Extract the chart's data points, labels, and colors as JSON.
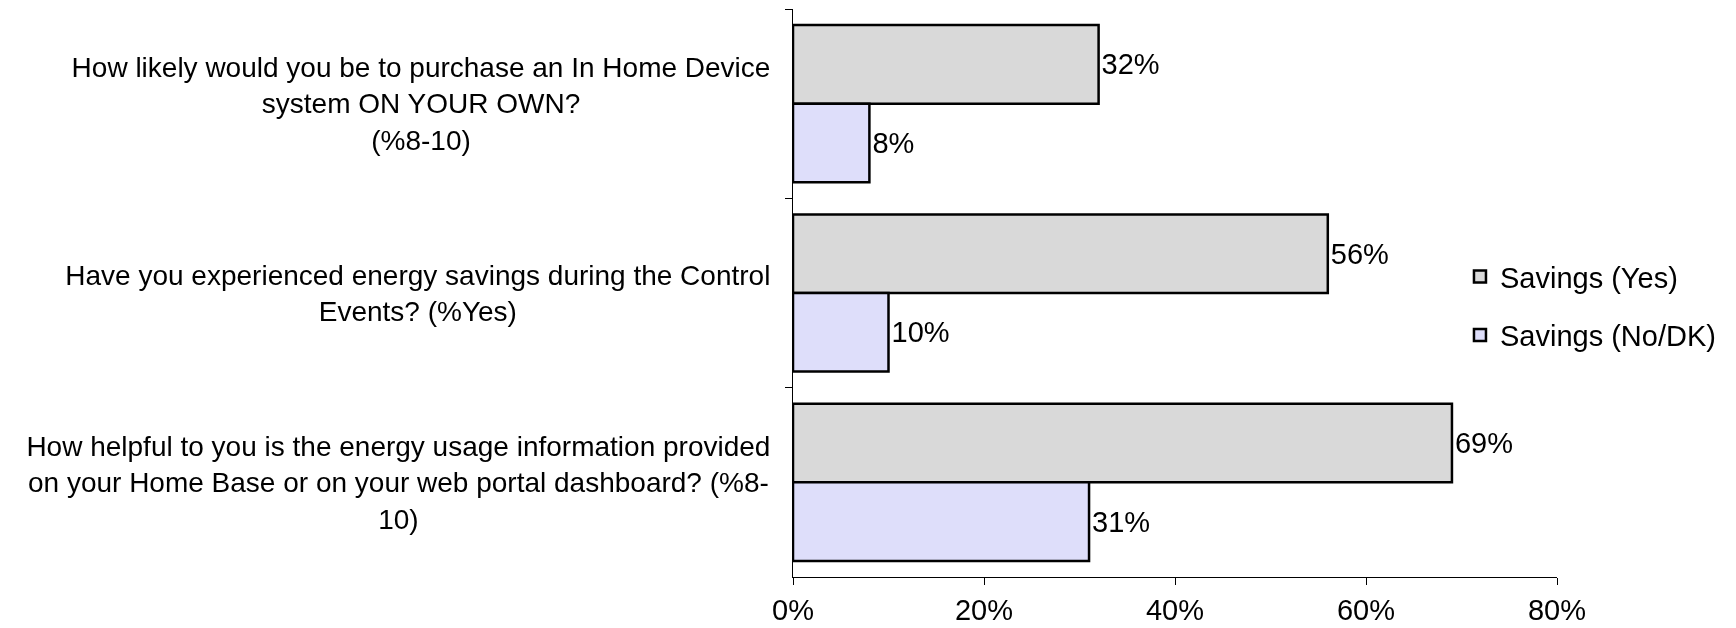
{
  "chart_data": {
    "type": "bar",
    "orientation": "horizontal",
    "categories": [
      "How likely would you be to purchase an In Home Device\nsystem ON YOUR OWN?\n(%8-10)",
      "Have you experienced energy savings during the Control\nEvents? (%Yes)",
      "How helpful to you is the energy usage information provided\non your Home Base or on your web portal dashboard? (%8-\n10)"
    ],
    "series": [
      {
        "name": "Savings (Yes)",
        "color": "#d9d9d9",
        "values": [
          32,
          56,
          69
        ],
        "value_labels": [
          "32%",
          "56%",
          "69%"
        ]
      },
      {
        "name": "Savings (No/DK)",
        "color": "#dedefa",
        "values": [
          8,
          10,
          31
        ],
        "value_labels": [
          "8%",
          "10%",
          "31%"
        ]
      }
    ],
    "xlim": [
      0,
      80
    ],
    "xticks": [
      {
        "value": 0,
        "label": "0%"
      },
      {
        "value": 20,
        "label": "20%"
      },
      {
        "value": 40,
        "label": "40%"
      },
      {
        "value": 60,
        "label": "60%"
      },
      {
        "value": 80,
        "label": "80%"
      }
    ],
    "grid": false,
    "legend": "right"
  }
}
